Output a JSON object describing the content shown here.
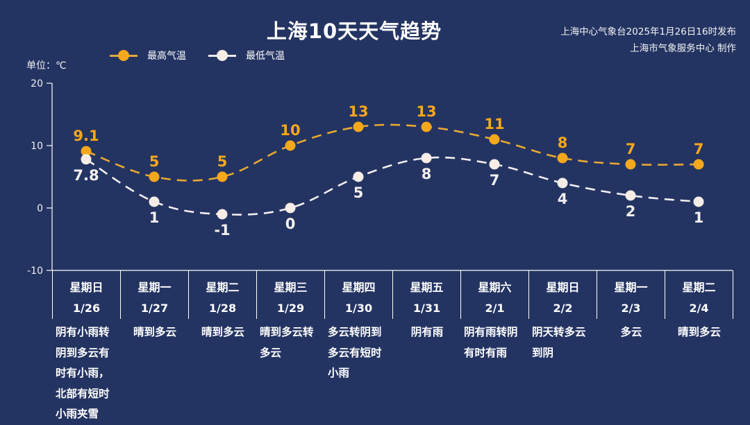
{
  "header": {
    "title": "上海10天天气趋势",
    "issuer_line1": "上海中心气象台2025年1月26日16时发布",
    "issuer_line2": "上海市气象服务中心 制作"
  },
  "legend": {
    "high_label": "最高气温",
    "low_label": "最低气温"
  },
  "unit_label": "单位：℃",
  "colors": {
    "background": "#243462",
    "high": "#F5A81C",
    "low": "#F5EDE6",
    "axis": "#FFFFFF"
  },
  "chart_data": {
    "type": "line",
    "title": "上海10天天气趋势",
    "ylabel": "单位：℃",
    "ylim": [
      -10,
      20
    ],
    "yticks": [
      20,
      10,
      0,
      -10
    ],
    "categories": [
      "1/26",
      "1/27",
      "1/28",
      "1/29",
      "1/30",
      "1/31",
      "2/1",
      "2/2",
      "2/3",
      "2/4"
    ],
    "weekdays": [
      "星期日",
      "星期一",
      "星期二",
      "星期三",
      "星期四",
      "星期五",
      "星期六",
      "星期日",
      "星期一",
      "星期二"
    ],
    "series": [
      {
        "name": "最高气温",
        "values": [
          9.1,
          5,
          5,
          10,
          13,
          13,
          11,
          8,
          7,
          7
        ],
        "labels": [
          "9.1",
          "5",
          "5",
          "10",
          "13",
          "13",
          "11",
          "8",
          "7",
          "7"
        ]
      },
      {
        "name": "最低气温",
        "values": [
          7.8,
          1,
          -1,
          0,
          5,
          8,
          7,
          4,
          2,
          1
        ],
        "labels": [
          "7.8",
          "1",
          "-1",
          "0",
          "5",
          "8",
          "7",
          "4",
          "2",
          "1"
        ]
      }
    ],
    "weather": [
      "阴有小雨转阴到多云有时有小雨，北部有短时小雨夹雪",
      "晴到多云",
      "晴到多云",
      "晴到多云转多云",
      "多云转阴到多云有短时小雨",
      "阴有雨",
      "阴有雨转阴有时有雨",
      "阴天转多云到阴",
      "多云",
      "晴到多云"
    ],
    "grid": false,
    "legend_position": "top-left"
  },
  "days": [
    {
      "weekday": "星期日",
      "date": "1/26",
      "desc_lines": [
        "阴有小雨转",
        "阴到多云有",
        "时有小雨，",
        "北部有短时",
        "小雨夹雪"
      ]
    },
    {
      "weekday": "星期一",
      "date": "1/27",
      "desc_lines": [
        "晴到多云"
      ]
    },
    {
      "weekday": "星期二",
      "date": "1/28",
      "desc_lines": [
        "晴到多云"
      ]
    },
    {
      "weekday": "星期三",
      "date": "1/29",
      "desc_lines": [
        "晴到多云转",
        "多云"
      ]
    },
    {
      "weekday": "星期四",
      "date": "1/30",
      "desc_lines": [
        "多云转阴到",
        "多云有短时",
        "小雨"
      ]
    },
    {
      "weekday": "星期五",
      "date": "1/31",
      "desc_lines": [
        "阴有雨"
      ]
    },
    {
      "weekday": "星期六",
      "date": "2/1",
      "desc_lines": [
        "阴有雨转阴",
        "有时有雨"
      ]
    },
    {
      "weekday": "星期日",
      "date": "2/2",
      "desc_lines": [
        "阴天转多云",
        "到阴"
      ]
    },
    {
      "weekday": "星期一",
      "date": "2/3",
      "desc_lines": [
        "多云"
      ]
    },
    {
      "weekday": "星期二",
      "date": "2/4",
      "desc_lines": [
        "晴到多云"
      ]
    }
  ]
}
